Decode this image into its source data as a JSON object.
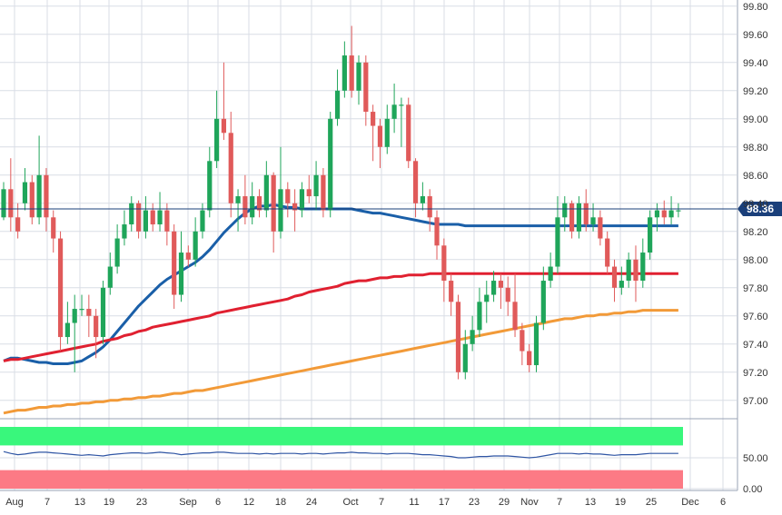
{
  "colors": {
    "bull": "#1fa55a",
    "bear": "#e05a5a",
    "ma_fast": "#1a5fa8",
    "ma_mid": "#e02030",
    "ma_slow": "#f29a38",
    "price_line": "#1a3f7a",
    "grid": "#d9dde6",
    "axis_text": "#333333",
    "osc_upper_zone": "#39f77c",
    "osc_lower_zone": "#fc7a85",
    "osc_line": "#2f55a4"
  },
  "chart_data": [
    {
      "type": "candlestick",
      "ylim": [
        96.87,
        99.82
      ],
      "y_ticks": [
        "99.80",
        "99.60",
        "99.40",
        "99.20",
        "99.00",
        "98.80",
        "98.60",
        "98.40",
        "98.20",
        "98.00",
        "97.80",
        "97.60",
        "97.40",
        "97.20",
        "97.00"
      ],
      "x_tick_labels": [
        "Aug",
        "7",
        "13",
        "19",
        "23",
        "Sep",
        "6",
        "12",
        "18",
        "24",
        "Oct",
        "7",
        "11",
        "17",
        "23",
        "29",
        "Nov",
        "7",
        "13",
        "19",
        "25",
        "Dec",
        "6"
      ],
      "last_price_label": "98.36",
      "last_price": 98.36,
      "grid": true,
      "candles": [
        [
          98.3,
          98.5,
          98.55,
          98.28
        ],
        [
          98.5,
          98.3,
          98.72,
          98.2
        ],
        [
          98.3,
          98.2,
          98.4,
          98.15
        ],
        [
          98.4,
          98.55,
          98.65,
          98.35
        ],
        [
          98.55,
          98.3,
          98.6,
          98.25
        ],
        [
          98.3,
          98.6,
          98.88,
          98.25
        ],
        [
          98.6,
          98.3,
          98.65,
          98.2
        ],
        [
          98.3,
          98.15,
          98.35,
          98.05
        ],
        [
          98.15,
          97.45,
          98.2,
          97.35
        ],
        [
          97.45,
          97.55,
          97.7,
          97.4
        ],
        [
          97.55,
          97.65,
          97.75,
          97.2
        ],
        [
          97.65,
          97.65,
          97.75,
          97.6
        ],
        [
          97.65,
          97.6,
          97.75,
          97.45
        ],
        [
          97.6,
          97.45,
          97.65,
          97.3
        ],
        [
          97.45,
          97.8,
          97.85,
          97.4
        ],
        [
          97.8,
          97.95,
          98.05,
          97.75
        ],
        [
          97.95,
          98.15,
          98.25,
          97.9
        ],
        [
          98.15,
          98.25,
          98.35,
          98.1
        ],
        [
          98.25,
          98.4,
          98.45,
          98.2
        ],
        [
          98.4,
          98.2,
          98.42,
          98.15
        ],
        [
          98.2,
          98.35,
          98.45,
          98.15
        ],
        [
          98.35,
          98.25,
          98.4,
          98.2
        ],
        [
          98.25,
          98.35,
          98.48,
          98.2
        ],
        [
          98.35,
          98.2,
          98.4,
          98.1
        ],
        [
          98.2,
          97.75,
          98.25,
          97.65
        ],
        [
          97.75,
          98.05,
          98.2,
          97.7
        ],
        [
          98.05,
          98.0,
          98.1,
          97.95
        ],
        [
          98.0,
          98.2,
          98.3,
          97.95
        ],
        [
          98.2,
          98.35,
          98.4,
          98.15
        ],
        [
          98.35,
          98.7,
          98.8,
          98.3
        ],
        [
          98.7,
          99.0,
          99.2,
          98.65
        ],
        [
          99.0,
          98.9,
          99.4,
          98.85
        ],
        [
          98.9,
          98.4,
          99.05,
          98.3
        ],
        [
          98.4,
          98.45,
          98.5,
          98.2
        ],
        [
          98.45,
          98.3,
          98.6,
          98.25
        ],
        [
          98.3,
          98.45,
          98.55,
          98.25
        ],
        [
          98.45,
          98.35,
          98.5,
          98.3
        ],
        [
          98.35,
          98.6,
          98.7,
          98.3
        ],
        [
          98.6,
          98.2,
          98.62,
          98.05
        ],
        [
          98.2,
          98.5,
          98.8,
          98.15
        ],
        [
          98.5,
          98.4,
          98.55,
          98.3
        ],
        [
          98.4,
          98.35,
          98.5,
          98.2
        ],
        [
          98.35,
          98.5,
          98.55,
          98.3
        ],
        [
          98.5,
          98.45,
          98.6,
          98.4
        ],
        [
          98.45,
          98.6,
          98.7,
          98.35
        ],
        [
          98.6,
          98.35,
          98.65,
          98.3
        ],
        [
          98.35,
          99.0,
          99.05,
          98.3
        ],
        [
          99.0,
          99.2,
          99.35,
          98.95
        ],
        [
          99.2,
          99.45,
          99.55,
          99.15
        ],
        [
          99.45,
          99.2,
          99.66,
          99.15
        ],
        [
          99.2,
          99.4,
          99.45,
          99.1
        ],
        [
          99.4,
          99.05,
          99.45,
          98.95
        ],
        [
          99.05,
          98.95,
          99.1,
          98.7
        ],
        [
          98.95,
          98.8,
          99.0,
          98.65
        ],
        [
          98.8,
          99.0,
          99.1,
          98.75
        ],
        [
          99.0,
          99.1,
          99.25,
          98.9
        ],
        [
          99.1,
          99.1,
          99.15,
          98.8
        ],
        [
          99.1,
          98.7,
          99.15,
          98.65
        ],
        [
          98.7,
          98.4,
          98.72,
          98.3
        ],
        [
          98.4,
          98.45,
          98.55,
          98.35
        ],
        [
          98.45,
          98.3,
          98.5,
          98.2
        ],
        [
          98.3,
          98.1,
          98.35,
          98.0
        ],
        [
          98.1,
          97.85,
          98.15,
          97.7
        ],
        [
          97.85,
          97.7,
          97.9,
          97.6
        ],
        [
          97.7,
          97.2,
          97.75,
          97.15
        ],
        [
          97.2,
          97.4,
          97.5,
          97.15
        ],
        [
          97.4,
          97.5,
          97.6,
          97.35
        ],
        [
          97.5,
          97.7,
          97.8,
          97.45
        ],
        [
          97.7,
          97.75,
          97.85,
          97.55
        ],
        [
          97.75,
          97.85,
          97.92,
          97.7
        ],
        [
          97.85,
          97.8,
          97.9,
          97.65
        ],
        [
          97.8,
          97.7,
          97.88,
          97.6
        ],
        [
          97.7,
          97.5,
          97.9,
          97.45
        ],
        [
          97.5,
          97.35,
          97.55,
          97.25
        ],
        [
          97.35,
          97.25,
          97.4,
          97.2
        ],
        [
          97.25,
          97.55,
          97.6,
          97.2
        ],
        [
          97.55,
          97.85,
          97.95,
          97.5
        ],
        [
          97.85,
          97.95,
          98.05,
          97.8
        ],
        [
          97.95,
          98.3,
          98.45,
          97.9
        ],
        [
          98.3,
          98.4,
          98.45,
          98.2
        ],
        [
          98.4,
          98.2,
          98.42,
          98.15
        ],
        [
          98.2,
          98.4,
          98.45,
          98.15
        ],
        [
          98.4,
          98.25,
          98.5,
          98.2
        ],
        [
          98.25,
          98.3,
          98.4,
          98.2
        ],
        [
          98.3,
          98.15,
          98.35,
          98.1
        ],
        [
          98.15,
          97.95,
          98.2,
          97.9
        ],
        [
          97.95,
          97.8,
          98.0,
          97.7
        ],
        [
          97.8,
          97.85,
          97.95,
          97.75
        ],
        [
          97.85,
          98.0,
          98.05,
          97.8
        ],
        [
          98.0,
          97.85,
          98.1,
          97.7
        ],
        [
          97.85,
          98.05,
          98.15,
          97.8
        ],
        [
          98.05,
          98.3,
          98.35,
          98.0
        ],
        [
          98.3,
          98.35,
          98.4,
          98.2
        ],
        [
          98.35,
          98.3,
          98.42,
          98.25
        ],
        [
          98.3,
          98.35,
          98.45,
          98.25
        ],
        [
          98.35,
          98.35,
          98.4,
          98.3
        ]
      ],
      "series": [
        {
          "values": [
            97.28,
            97.3,
            97.3,
            97.29,
            97.28,
            97.27,
            97.27,
            97.26,
            97.26,
            97.26,
            97.27,
            97.28,
            97.31,
            97.34,
            97.38,
            97.43,
            97.49,
            97.55,
            97.61,
            97.67,
            97.72,
            97.77,
            97.82,
            97.86,
            97.89,
            97.92,
            97.95,
            97.98,
            98.02,
            98.07,
            98.13,
            98.19,
            98.24,
            98.29,
            98.33,
            98.36,
            98.38,
            98.38,
            98.39,
            98.38,
            98.37,
            98.37,
            98.36,
            98.36,
            98.36,
            98.36,
            98.36,
            98.36,
            98.36,
            98.36,
            98.35,
            98.34,
            98.33,
            98.33,
            98.32,
            98.31,
            98.3,
            98.29,
            98.28,
            98.27,
            98.26,
            98.25,
            98.25,
            98.25,
            98.25,
            98.24,
            98.24,
            98.24,
            98.24,
            98.24,
            98.24,
            98.24,
            98.24,
            98.24,
            98.24,
            98.24,
            98.24,
            98.24,
            98.24,
            98.24,
            98.24,
            98.24,
            98.24,
            98.24,
            98.24,
            98.24,
            98.24,
            98.24,
            98.24,
            98.24,
            98.24,
            98.24,
            98.24,
            98.24,
            98.24,
            98.24
          ]
        },
        {
          "values": [
            97.28,
            97.29,
            97.29,
            97.3,
            97.31,
            97.32,
            97.33,
            97.34,
            97.35,
            97.36,
            97.37,
            97.38,
            97.39,
            97.4,
            97.42,
            97.43,
            97.44,
            97.46,
            97.47,
            97.49,
            97.5,
            97.52,
            97.53,
            97.54,
            97.55,
            97.56,
            97.57,
            97.58,
            97.59,
            97.6,
            97.62,
            97.63,
            97.64,
            97.65,
            97.66,
            97.67,
            97.68,
            97.69,
            97.7,
            97.71,
            97.72,
            97.74,
            97.75,
            97.77,
            97.78,
            97.79,
            97.8,
            97.81,
            97.83,
            97.84,
            97.85,
            97.85,
            97.86,
            97.87,
            97.87,
            97.88,
            97.88,
            97.89,
            97.89,
            97.89,
            97.9,
            97.9,
            97.9,
            97.9,
            97.9,
            97.9,
            97.9,
            97.9,
            97.9,
            97.9,
            97.9,
            97.9,
            97.9,
            97.9,
            97.9,
            97.9,
            97.9,
            97.9,
            97.9,
            97.9,
            97.9,
            97.9,
            97.9,
            97.9,
            97.9,
            97.9,
            97.9,
            97.9,
            97.9,
            97.9,
            97.9,
            97.9,
            97.9,
            97.9,
            97.9,
            97.9
          ]
        },
        {
          "values": [
            96.91,
            96.92,
            96.93,
            96.93,
            96.94,
            96.95,
            96.95,
            96.96,
            96.96,
            96.97,
            96.97,
            96.98,
            96.98,
            96.99,
            96.99,
            97.0,
            97.0,
            97.01,
            97.01,
            97.02,
            97.02,
            97.03,
            97.03,
            97.04,
            97.05,
            97.05,
            97.06,
            97.07,
            97.07,
            97.08,
            97.09,
            97.1,
            97.11,
            97.12,
            97.13,
            97.14,
            97.15,
            97.16,
            97.17,
            97.18,
            97.19,
            97.2,
            97.21,
            97.22,
            97.23,
            97.24,
            97.25,
            97.26,
            97.27,
            97.28,
            97.29,
            97.3,
            97.31,
            97.32,
            97.33,
            97.34,
            97.35,
            97.36,
            97.37,
            97.38,
            97.39,
            97.4,
            97.41,
            97.42,
            97.43,
            97.44,
            97.45,
            97.46,
            97.47,
            97.48,
            97.49,
            97.5,
            97.51,
            97.52,
            97.53,
            97.54,
            97.55,
            97.56,
            97.57,
            97.58,
            97.58,
            97.59,
            97.6,
            97.6,
            97.61,
            97.61,
            97.62,
            97.62,
            97.63,
            97.63,
            97.64,
            97.64,
            97.64,
            97.64,
            97.64,
            97.64
          ]
        }
      ]
    },
    {
      "type": "line",
      "ylim": [
        0,
        100
      ],
      "y_ticks": [
        "50.00",
        "0.00"
      ],
      "upper_zone_start": 70,
      "lower_zone_end": 30,
      "values": [
        60,
        57,
        55,
        56,
        58,
        59,
        59,
        58,
        57,
        56,
        55,
        54,
        55,
        54,
        53,
        55,
        56,
        57,
        58,
        58,
        57,
        58,
        59,
        58,
        57,
        55,
        56,
        57,
        58,
        58,
        59,
        59,
        58,
        57,
        57,
        57,
        56,
        57,
        56,
        57,
        57,
        57,
        56,
        57,
        57,
        56,
        57,
        58,
        58,
        59,
        58,
        58,
        57,
        57,
        56,
        57,
        57,
        57,
        56,
        55,
        55,
        54,
        53,
        52,
        50,
        50,
        51,
        52,
        52,
        53,
        53,
        53,
        52,
        51,
        50,
        51,
        53,
        55,
        57,
        57,
        57,
        56,
        57,
        56,
        56,
        55,
        54,
        55,
        55,
        55,
        56,
        57,
        57,
        57,
        57,
        57
      ]
    }
  ]
}
